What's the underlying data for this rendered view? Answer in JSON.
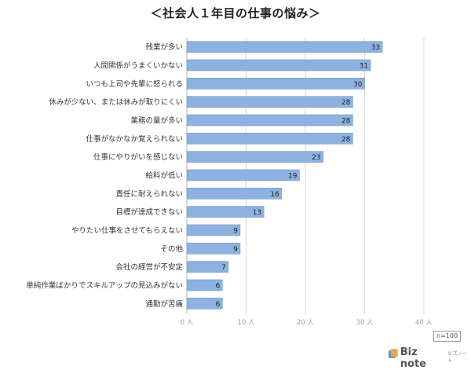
{
  "title": "＜社会人１年目の仕事の悩み＞",
  "sample_note": "n=100",
  "logo": {
    "brand": "Biz note",
    "sub": "ビズノート",
    "icon": "biz-note-logo-icon"
  },
  "colors": {
    "bar": "#8db2df",
    "bar_stroke": "#7399c9",
    "grid": "#d7d7d7",
    "axis": "#b5b5b5"
  },
  "chart_data": {
    "type": "bar",
    "orientation": "horizontal",
    "title": "＜社会人１年目の仕事の悩み＞",
    "categories": [
      "残業が多い",
      "人間関係がうまくいかない",
      "いつも上司や先輩に怒られる",
      "休みが少ない、または休みが取りにくい",
      "業務の量が多い",
      "仕事がなかなか覚えられない",
      "仕事にやりがいを感じない",
      "給料が低い",
      "責任に耐えられない",
      "目標が達成できない",
      "やりたい仕事をさせてもらえない",
      "その他",
      "会社の経営が不安定",
      "単純作業ばかりでスキルアップの見込みがない",
      "通勤が苦痛"
    ],
    "values": [
      33,
      31,
      30,
      28,
      28,
      28,
      23,
      19,
      16,
      13,
      9,
      9,
      7,
      6,
      6
    ],
    "xlim": [
      0,
      40
    ],
    "xticks": [
      0,
      10,
      20,
      30,
      40
    ],
    "xtick_labels": [
      "0 人",
      "10 人",
      "20 人",
      "30 人",
      "40 人"
    ],
    "grid": true,
    "data_labels": true
  }
}
